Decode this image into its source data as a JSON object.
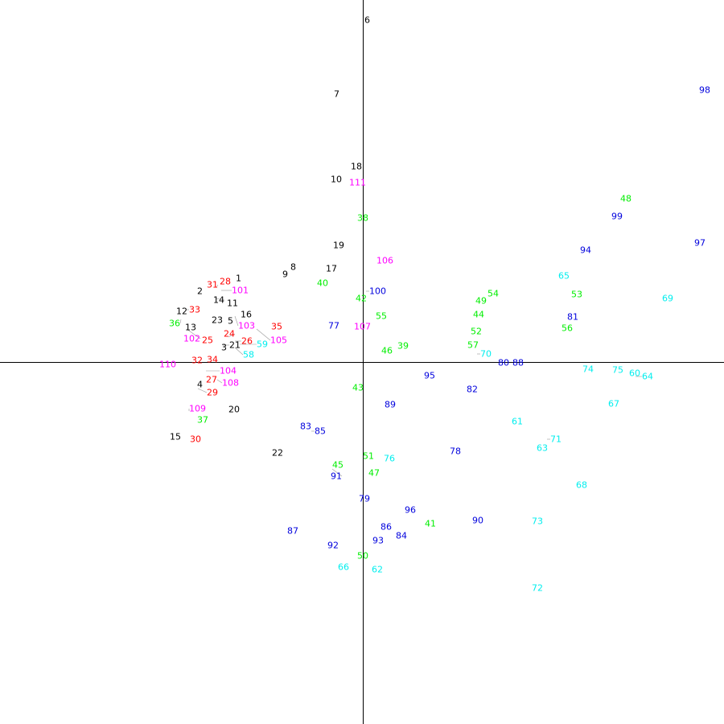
{
  "chart_data": {
    "type": "scatter",
    "title": "",
    "xlabel": "",
    "ylabel": "",
    "xlim": [
      -451,
      449
    ],
    "ylim": [
      -450,
      450
    ],
    "grid": false,
    "axes_through_origin": true,
    "point_style": "text-labels",
    "series": [
      {
        "color": "#000000",
        "points": [
          [
            "1",
            -158,
            104
          ],
          [
            "2",
            -206,
            88
          ],
          [
            "3",
            -176,
            18
          ],
          [
            "4",
            -206,
            -28
          ],
          [
            "5",
            -168,
            51
          ],
          [
            "6",
            2,
            425
          ],
          [
            "7",
            -36,
            333
          ],
          [
            "8",
            -90,
            118
          ],
          [
            "9",
            -100,
            109
          ],
          [
            "10",
            -40,
            227
          ],
          [
            "11",
            -169,
            73
          ],
          [
            "12",
            -232,
            63
          ],
          [
            "13",
            -221,
            43
          ],
          [
            "14",
            -183,
            79
          ],
          [
            "15",
            -240,
            -93
          ],
          [
            "16",
            -152,
            59
          ],
          [
            "17",
            -46,
            116
          ],
          [
            "18",
            -15,
            243
          ],
          [
            "19",
            -37,
            145
          ],
          [
            "20",
            -167,
            -59
          ],
          [
            "21",
            -174,
            21
          ],
          [
            "22",
            -113,
            -113
          ],
          [
            "23",
            -188,
            52
          ]
        ]
      },
      {
        "color": "#ff0000",
        "points": [
          [
            "24",
            -167,
            31
          ],
          [
            "25",
            -200,
            27
          ],
          [
            "26",
            -159,
            26
          ],
          [
            "27",
            -195,
            -22
          ],
          [
            "28",
            -178,
            100
          ],
          [
            "29",
            -205,
            -33
          ],
          [
            "30",
            -215,
            -96
          ],
          [
            "31",
            -182,
            93
          ],
          [
            "32",
            -213,
            2
          ],
          [
            "33",
            -220,
            65
          ],
          [
            "34",
            -194,
            3
          ],
          [
            "35",
            -114,
            44
          ]
        ]
      },
      {
        "color": "#00ee00",
        "points": [
          [
            "36",
            -226,
            53
          ],
          [
            "37",
            -206,
            -72
          ],
          [
            "38",
            -7,
            179
          ],
          [
            "39",
            43,
            20
          ],
          [
            "40",
            -57,
            98
          ],
          [
            "41",
            77,
            -201
          ],
          [
            "42",
            -9,
            79
          ],
          [
            "43",
            -13,
            -32
          ],
          [
            "44",
            137,
            59
          ],
          [
            "45",
            -38,
            -128
          ],
          [
            "46",
            23,
            14
          ],
          [
            "47",
            7,
            -138
          ],
          [
            "48",
            320,
            203
          ],
          [
            "49",
            140,
            76
          ],
          [
            "50",
            -7,
            -241
          ],
          [
            "51",
            0,
            -117
          ],
          [
            "52",
            134,
            38
          ],
          [
            "53",
            259,
            84
          ],
          [
            "54",
            155,
            85
          ],
          [
            "55",
            16,
            57
          ],
          [
            "56",
            247,
            42
          ],
          [
            "57",
            130,
            21
          ]
        ]
      },
      {
        "color": "#00eeee",
        "points": [
          [
            "58",
            -159,
            18
          ],
          [
            "59",
            -153,
            22
          ],
          [
            "60",
            331,
            -14
          ],
          [
            "61",
            185,
            -74
          ],
          [
            "62",
            11,
            -258
          ],
          [
            "63",
            216,
            -107
          ],
          [
            "64",
            339,
            -18
          ],
          [
            "65",
            243,
            107
          ],
          [
            "66",
            -31,
            -255
          ],
          [
            "67",
            305,
            -52
          ],
          [
            "68",
            265,
            -153
          ],
          [
            "69",
            372,
            79
          ],
          [
            "70",
            142,
            10
          ],
          [
            "71",
            229,
            -96
          ],
          [
            "72",
            210,
            -281
          ],
          [
            "73",
            210,
            -198
          ],
          [
            "74",
            273,
            -9
          ],
          [
            "75",
            310,
            -10
          ],
          [
            "76",
            26,
            -120
          ]
        ]
      },
      {
        "color": "#0000dd",
        "points": [
          [
            "77",
            -43,
            45
          ],
          [
            "78",
            108,
            -111
          ],
          [
            "79",
            -5,
            -170
          ],
          [
            "80",
            168,
            -1
          ],
          [
            "81",
            254,
            56
          ],
          [
            "82",
            129,
            -34
          ],
          [
            "83",
            -78,
            -80
          ],
          [
            "84",
            41,
            -216
          ],
          [
            "85",
            -64,
            -86
          ],
          [
            "86",
            22,
            -205
          ],
          [
            "87",
            -94,
            -210
          ],
          [
            "88",
            186,
            -1
          ],
          [
            "89",
            27,
            -53
          ],
          [
            "90",
            136,
            -197
          ],
          [
            "91",
            -38,
            -133
          ],
          [
            "92",
            -44,
            -228
          ],
          [
            "93",
            12,
            -222
          ],
          [
            "94",
            270,
            139
          ],
          [
            "95",
            76,
            -17
          ],
          [
            "96",
            52,
            -184
          ],
          [
            "97",
            412,
            148
          ],
          [
            "98",
            418,
            338
          ],
          [
            "99",
            309,
            181
          ],
          [
            "100",
            4,
            88
          ]
        ]
      },
      {
        "color": "#ff00ff",
        "points": [
          [
            "101",
            -176,
            89
          ],
          [
            "102",
            -219,
            41
          ],
          [
            "103",
            -159,
            57
          ],
          [
            "104",
            -195,
            -11
          ],
          [
            "105",
            -132,
            41
          ],
          [
            "106",
            17,
            126
          ],
          [
            "107",
            -11,
            44
          ],
          [
            "108",
            -181,
            -22
          ],
          [
            "109",
            -216,
            -61
          ],
          [
            "110",
            -253,
            -3
          ],
          [
            "111",
            -17,
            223
          ]
        ]
      }
    ]
  }
}
